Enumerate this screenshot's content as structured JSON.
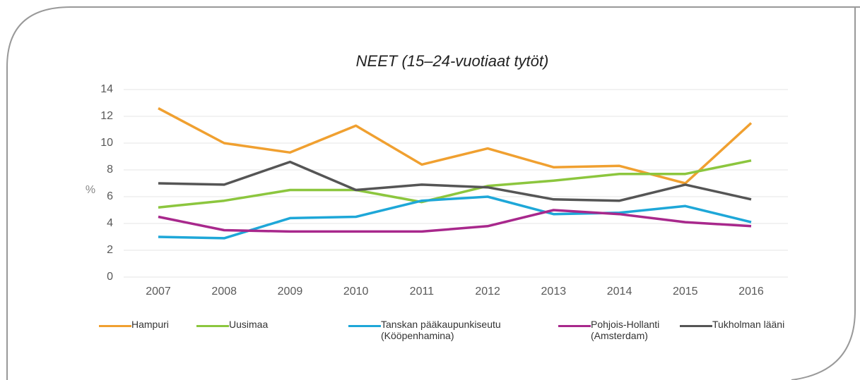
{
  "chart_data": {
    "type": "line",
    "title": "NEET (15–24-vuotiaat tytöt)",
    "y_label": "%",
    "categories": [
      "2007",
      "2008",
      "2009",
      "2010",
      "2011",
      "2012",
      "2013",
      "2014",
      "2015",
      "2016"
    ],
    "ylim": [
      0,
      14
    ],
    "yticks": [
      0,
      2,
      4,
      6,
      8,
      10,
      12,
      14
    ],
    "grid": true,
    "series": [
      {
        "name": "Hampuri",
        "color": "#f0a030",
        "values": [
          12.6,
          10.0,
          9.3,
          11.3,
          8.4,
          9.6,
          8.2,
          8.3,
          7.0,
          11.5
        ]
      },
      {
        "name": "Uusimaa",
        "color": "#8cc63e",
        "values": [
          5.2,
          5.7,
          6.5,
          6.5,
          5.6,
          6.8,
          7.2,
          7.7,
          7.7,
          8.7
        ]
      },
      {
        "name": "Tanskan pääkaupunkiseutu (Kööpenhamina)",
        "color": "#1ea7d8",
        "values": [
          3.0,
          2.9,
          4.4,
          4.5,
          5.7,
          6.0,
          4.7,
          4.8,
          5.3,
          4.1
        ]
      },
      {
        "name": "Pohjois-Hollanti (Amsterdam)",
        "color": "#a8288c",
        "values": [
          4.5,
          3.5,
          3.4,
          3.4,
          3.4,
          3.8,
          5.0,
          4.7,
          4.1,
          3.8
        ]
      },
      {
        "name": "Tukholman lääni",
        "color": "#555555",
        "values": [
          7.0,
          6.9,
          8.6,
          6.5,
          6.9,
          6.7,
          5.8,
          5.7,
          6.9,
          5.8
        ]
      }
    ]
  }
}
